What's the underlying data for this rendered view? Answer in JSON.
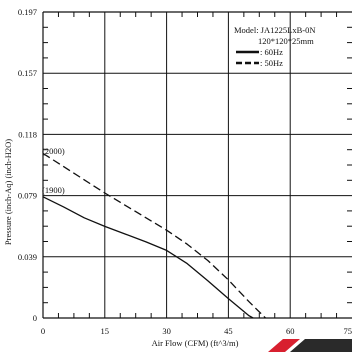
{
  "chart_data": {
    "type": "line",
    "xlabel": "Air Flow (CFM) (ft^3/m)",
    "ylabel": "Pressure (inch-Aq) (inch-H2O)",
    "xlim": [
      0,
      75
    ],
    "ylim": [
      0,
      0.197
    ],
    "x_ticks": [
      "0",
      "15",
      "30",
      "45",
      "60",
      "75"
    ],
    "y_ticks": [
      "0",
      "0.039",
      "0.079",
      "0.118",
      "0.157",
      "0.197"
    ],
    "legend": {
      "placement": "top-right",
      "model_line": "Model: JA1225LxB-0N",
      "size_line": "120*120*25mm",
      "entries": [
        ": 60Hz",
        ": 50Hz"
      ]
    },
    "series": [
      {
        "name": "60Hz",
        "style": "solid",
        "annotation": "(1900)",
        "points": [
          [
            0,
            0.078
          ],
          [
            5,
            0.0715
          ],
          [
            10,
            0.0645
          ],
          [
            15,
            0.059
          ],
          [
            20,
            0.054
          ],
          [
            25,
            0.049
          ],
          [
            30,
            0.0435
          ],
          [
            35,
            0.035
          ],
          [
            40,
            0.024
          ],
          [
            45,
            0.0125
          ],
          [
            50,
            0.0015
          ],
          [
            51,
            0
          ]
        ]
      },
      {
        "name": "50Hz",
        "style": "dashed",
        "annotation": "(2000)",
        "points": [
          [
            0,
            0.106
          ],
          [
            5,
            0.0975
          ],
          [
            10,
            0.089
          ],
          [
            15,
            0.0805
          ],
          [
            20,
            0.0725
          ],
          [
            25,
            0.0645
          ],
          [
            30,
            0.0565
          ],
          [
            35,
            0.0475
          ],
          [
            40,
            0.037
          ],
          [
            45,
            0.0245
          ],
          [
            50,
            0.0105
          ],
          [
            54,
            0
          ]
        ]
      }
    ]
  },
  "colors": {
    "line": "#111111",
    "grid": "#111111",
    "background": "#ffffff",
    "logo_red": "#d8202f",
    "logo_dark": "#2a2a2a"
  }
}
